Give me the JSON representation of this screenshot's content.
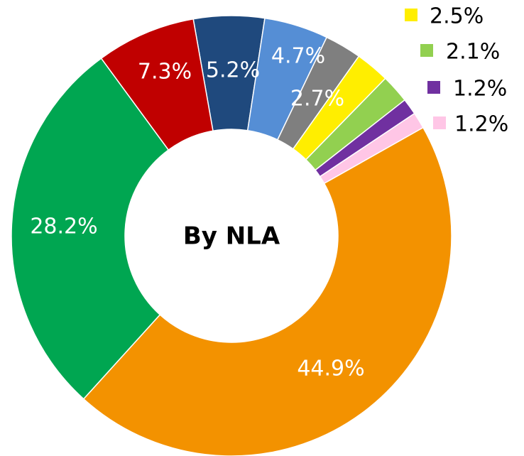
{
  "chart_data": {
    "type": "donut",
    "center_label": "By NLA",
    "values": [
      5.2,
      4.7,
      2.7,
      2.5,
      2.1,
      1.2,
      1.2,
      44.9,
      28.2,
      7.3
    ],
    "value_labels": [
      "5.2%",
      "4.7%",
      "2.7%",
      "2.5%",
      "2.1%",
      "1.2%",
      "1.2%",
      "44.9%",
      "28.2%",
      "7.3%"
    ],
    "colors": [
      "#1f497d",
      "#558ed5",
      "#7f7f7f",
      "#ffee00",
      "#92d050",
      "#7030a0",
      "#ffc6e6",
      "#f39200",
      "#00a651",
      "#c00000"
    ]
  }
}
